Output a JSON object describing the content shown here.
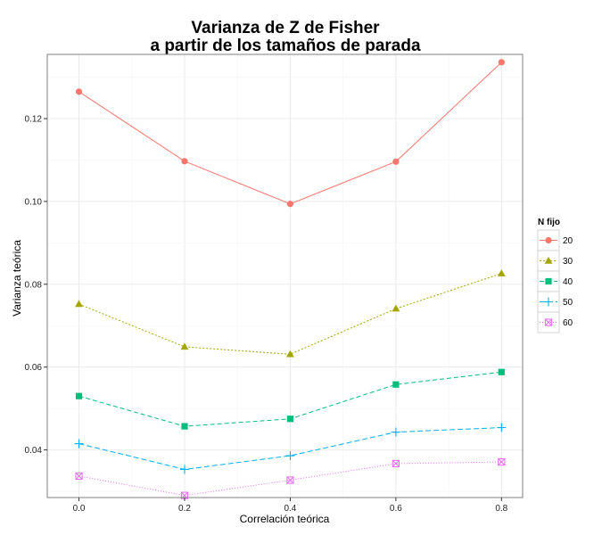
{
  "chart_data": {
    "type": "line",
    "title_lines": [
      "Varianza de Z de Fisher",
      "a partir de los tamaños de parada"
    ],
    "xlabel": "Correlación teórica",
    "ylabel": "Varianza teórica",
    "x": [
      0.0,
      0.2,
      0.4,
      0.6,
      0.8
    ],
    "x_tick_labels": [
      "0.0",
      "0.2",
      "0.4",
      "0.6",
      "0.8"
    ],
    "y_ticks": [
      0.04,
      0.06,
      0.08,
      0.1,
      0.12
    ],
    "y_tick_labels": [
      "0.04",
      "0.06",
      "0.08",
      "0.10",
      "0.12"
    ],
    "xlim": [
      -0.06,
      0.84
    ],
    "ylim": [
      0.0285,
      0.1355
    ],
    "grid": true,
    "legend": {
      "title": "N fijo",
      "position": "right"
    },
    "series": [
      {
        "name": "20",
        "color": "#F8766D",
        "marker": "circle",
        "dash": "",
        "values": [
          0.1265,
          0.1097,
          0.0994,
          0.1096,
          0.1336
        ]
      },
      {
        "name": "30",
        "color": "#A3A500",
        "marker": "triangle",
        "dash": "2,2",
        "values": [
          0.0752,
          0.0649,
          0.0631,
          0.0741,
          0.0826
        ]
      },
      {
        "name": "40",
        "color": "#00BF7D",
        "marker": "square",
        "dash": "5,3",
        "values": [
          0.053,
          0.0457,
          0.0475,
          0.0558,
          0.0588
        ]
      },
      {
        "name": "50",
        "color": "#00B0F6",
        "marker": "plus",
        "dash": "6,3",
        "values": [
          0.0415,
          0.0353,
          0.0386,
          0.0443,
          0.0454
        ]
      },
      {
        "name": "60",
        "color": "#E76BF3",
        "marker": "boxx",
        "dash": "1,2",
        "values": [
          0.0337,
          0.029,
          0.0327,
          0.0367,
          0.0371
        ]
      }
    ]
  }
}
